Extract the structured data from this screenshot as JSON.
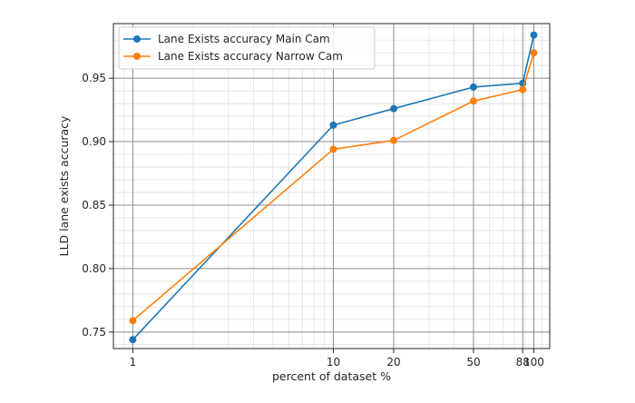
{
  "chart_data": {
    "type": "line",
    "title": "",
    "xlabel": "percent of dataset %",
    "ylabel": "LLD lane exists accuracy",
    "x_scale": "log",
    "x": [
      1,
      10,
      20,
      50,
      88,
      100
    ],
    "xticks": [
      "1",
      "10",
      "20",
      "50",
      "88",
      "100"
    ],
    "xlim": [
      0.8,
      120
    ],
    "ylim": [
      0.737,
      0.993
    ],
    "yticks": [
      "0.75",
      "0.80",
      "0.85",
      "0.90",
      "0.95"
    ],
    "grid": true,
    "minor_grid": true,
    "legend_placement": "top-left",
    "series": [
      {
        "name": "Lane Exists accuracy Main Cam",
        "color": "#1f77b4",
        "marker": "circle",
        "values": [
          0.744,
          0.913,
          0.926,
          0.943,
          0.946,
          0.984
        ]
      },
      {
        "name": "Lane Exists accuracy Narrow Cam",
        "color": "#ff7f0e",
        "marker": "circle",
        "values": [
          0.759,
          0.894,
          0.901,
          0.932,
          0.941,
          0.97
        ]
      }
    ]
  }
}
